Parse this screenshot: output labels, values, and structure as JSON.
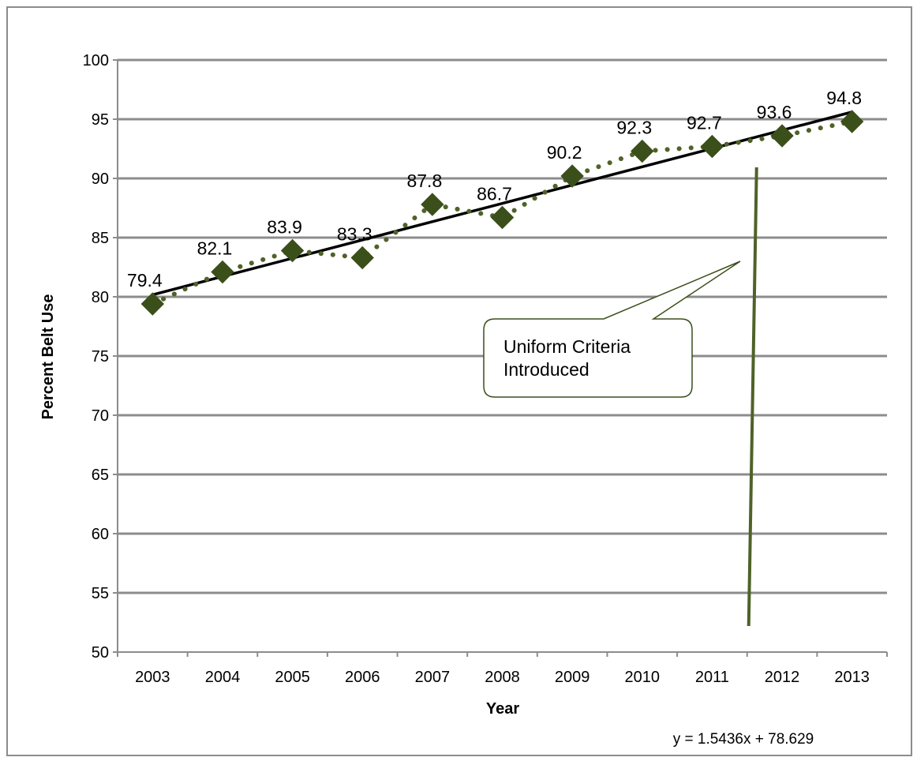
{
  "chart_data": {
    "type": "line",
    "categories": [
      "2003",
      "2004",
      "2005",
      "2006",
      "2007",
      "2008",
      "2009",
      "2010",
      "2011",
      "2012",
      "2013"
    ],
    "series": [
      {
        "values": [
          79.4,
          82.1,
          83.9,
          83.3,
          87.8,
          86.7,
          90.2,
          92.3,
          92.7,
          93.6,
          94.8
        ]
      }
    ],
    "data_labels": [
      "79.4",
      "82.1",
      "83.9",
      "83.3",
      "87.8",
      "86.7",
      "90.2",
      "92.3",
      "92.7",
      "93.6",
      "94.8"
    ],
    "trendline": {
      "type": "linear",
      "slope": 1.5436,
      "intercept": 78.629,
      "equation": "y = 1.5436x + 78.629"
    },
    "xlabel": "Year",
    "ylabel": "Percent Belt Use",
    "ylim": [
      50,
      100
    ],
    "yticks": [
      50,
      55,
      60,
      65,
      70,
      75,
      80,
      85,
      90,
      95,
      100
    ],
    "grid": true,
    "annotation": {
      "text_lines": [
        "Uniform Criteria",
        "Introduced"
      ],
      "marker_between": [
        "2011",
        "2012"
      ]
    },
    "colors": {
      "series": "#3b4f1b",
      "series_line": "#4f6228",
      "trendline": "#000000",
      "gridline": "#8c8c8c",
      "marker_line": "#4f6228",
      "callout_border": "#3b4f1b"
    }
  }
}
